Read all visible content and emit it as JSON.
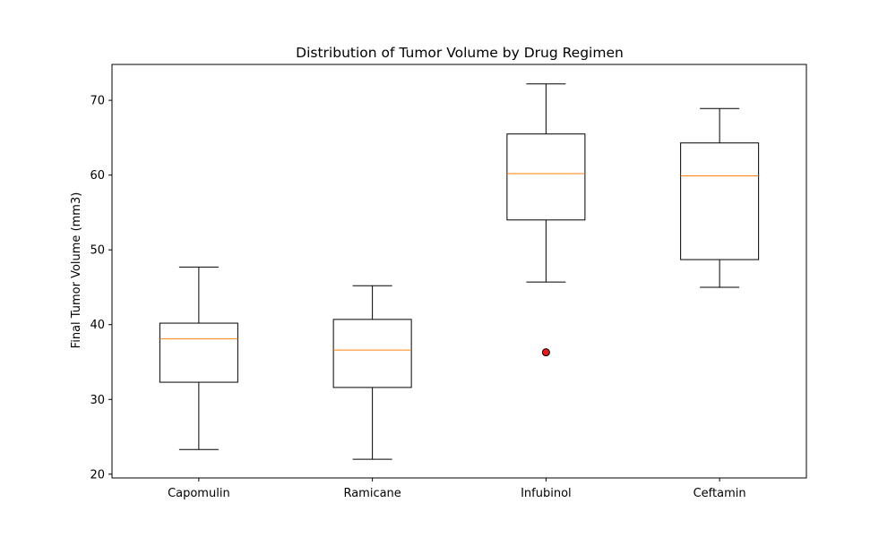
{
  "chart_data": {
    "type": "box",
    "title": "Distribution of Tumor Volume by Drug Regimen",
    "xlabel": "",
    "ylabel": "Final Tumor Volume (mm3)",
    "ylim": [
      19.5,
      74.8
    ],
    "yticks": [
      20,
      30,
      40,
      50,
      60,
      70
    ],
    "categories": [
      "Capomulin",
      "Ramicane",
      "Infubinol",
      "Ceftamin"
    ],
    "boxes": [
      {
        "whisker_low": 23.3,
        "q1": 32.3,
        "median": 38.1,
        "q3": 40.2,
        "whisker_high": 47.7,
        "outliers": []
      },
      {
        "whisker_low": 22.0,
        "q1": 31.6,
        "median": 36.6,
        "q3": 40.7,
        "whisker_high": 45.2,
        "outliers": []
      },
      {
        "whisker_low": 45.7,
        "q1": 54.0,
        "median": 60.2,
        "q3": 65.5,
        "whisker_high": 72.2,
        "outliers": [
          36.3
        ]
      },
      {
        "whisker_low": 45.0,
        "q1": 48.7,
        "median": 59.9,
        "q3": 64.3,
        "whisker_high": 68.9,
        "outliers": []
      }
    ],
    "grid": false,
    "colors": {
      "box": "#000000",
      "median": "#ff7f0e",
      "outlier": "#e41a1c"
    }
  }
}
